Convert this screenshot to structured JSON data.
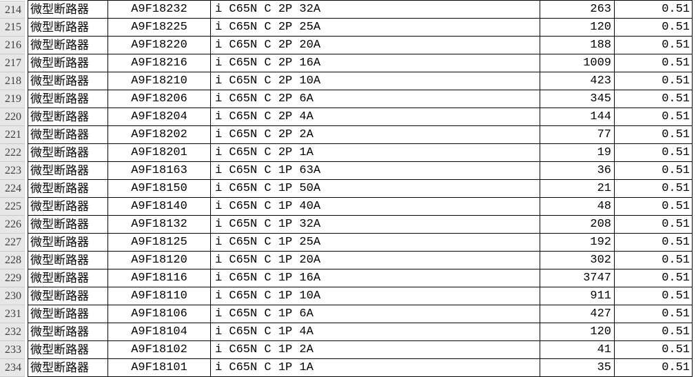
{
  "app": {
    "kind": "spreadsheet-table-region",
    "colors": {
      "grid_border": "#000000",
      "cell_text": "#000000",
      "row_header_bg": "#e7e7e7",
      "row_header_text": "#3f3f3f",
      "background": "#ffffff"
    }
  },
  "table": {
    "rows": [
      {
        "row_num": "214",
        "type": "微型断路器",
        "code": "A9F18232",
        "desc": "i C65N C 2P 32A",
        "qty": "263",
        "price": "0.51"
      },
      {
        "row_num": "215",
        "type": "微型断路器",
        "code": "A9F18225",
        "desc": "i C65N C 2P 25A",
        "qty": "120",
        "price": "0.51"
      },
      {
        "row_num": "216",
        "type": "微型断路器",
        "code": "A9F18220",
        "desc": "i C65N C 2P 20A",
        "qty": "188",
        "price": "0.51"
      },
      {
        "row_num": "217",
        "type": "微型断路器",
        "code": "A9F18216",
        "desc": "i C65N C 2P 16A",
        "qty": "1009",
        "price": "0.51"
      },
      {
        "row_num": "218",
        "type": "微型断路器",
        "code": "A9F18210",
        "desc": "i C65N C 2P 10A",
        "qty": "423",
        "price": "0.51"
      },
      {
        "row_num": "219",
        "type": "微型断路器",
        "code": "A9F18206",
        "desc": "i C65N C 2P 6A",
        "qty": "345",
        "price": "0.51"
      },
      {
        "row_num": "220",
        "type": "微型断路器",
        "code": "A9F18204",
        "desc": "i C65N C 2P 4A",
        "qty": "144",
        "price": "0.51"
      },
      {
        "row_num": "221",
        "type": "微型断路器",
        "code": "A9F18202",
        "desc": "i C65N C 2P 2A",
        "qty": "77",
        "price": "0.51"
      },
      {
        "row_num": "222",
        "type": "微型断路器",
        "code": "A9F18201",
        "desc": "i C65N C 2P 1A",
        "qty": "19",
        "price": "0.51"
      },
      {
        "row_num": "223",
        "type": "微型断路器",
        "code": "A9F18163",
        "desc": "i C65N C 1P 63A",
        "qty": "36",
        "price": "0.51"
      },
      {
        "row_num": "224",
        "type": "微型断路器",
        "code": "A9F18150",
        "desc": "i C65N C 1P 50A",
        "qty": "21",
        "price": "0.51"
      },
      {
        "row_num": "225",
        "type": "微型断路器",
        "code": "A9F18140",
        "desc": "i C65N C 1P 40A",
        "qty": "48",
        "price": "0.51"
      },
      {
        "row_num": "226",
        "type": "微型断路器",
        "code": "A9F18132",
        "desc": "i C65N C 1P 32A",
        "qty": "208",
        "price": "0.51"
      },
      {
        "row_num": "227",
        "type": "微型断路器",
        "code": "A9F18125",
        "desc": "i C65N C 1P 25A",
        "qty": "192",
        "price": "0.51"
      },
      {
        "row_num": "228",
        "type": "微型断路器",
        "code": "A9F18120",
        "desc": "i C65N C 1P 20A",
        "qty": "302",
        "price": "0.51"
      },
      {
        "row_num": "229",
        "type": "微型断路器",
        "code": "A9F18116",
        "desc": "i C65N C 1P 16A",
        "qty": "3747",
        "price": "0.51"
      },
      {
        "row_num": "230",
        "type": "微型断路器",
        "code": "A9F18110",
        "desc": "i C65N C 1P 10A",
        "qty": "911",
        "price": "0.51"
      },
      {
        "row_num": "231",
        "type": "微型断路器",
        "code": "A9F18106",
        "desc": "i C65N C 1P 6A",
        "qty": "427",
        "price": "0.51"
      },
      {
        "row_num": "232",
        "type": "微型断路器",
        "code": "A9F18104",
        "desc": "i C65N C 1P 4A",
        "qty": "120",
        "price": "0.51"
      },
      {
        "row_num": "233",
        "type": "微型断路器",
        "code": "A9F18102",
        "desc": "i C65N C 1P 2A",
        "qty": "41",
        "price": "0.51"
      },
      {
        "row_num": "234",
        "type": "微型断路器",
        "code": "A9F18101",
        "desc": "i C65N C 1P 1A",
        "qty": "35",
        "price": "0.51"
      }
    ]
  }
}
